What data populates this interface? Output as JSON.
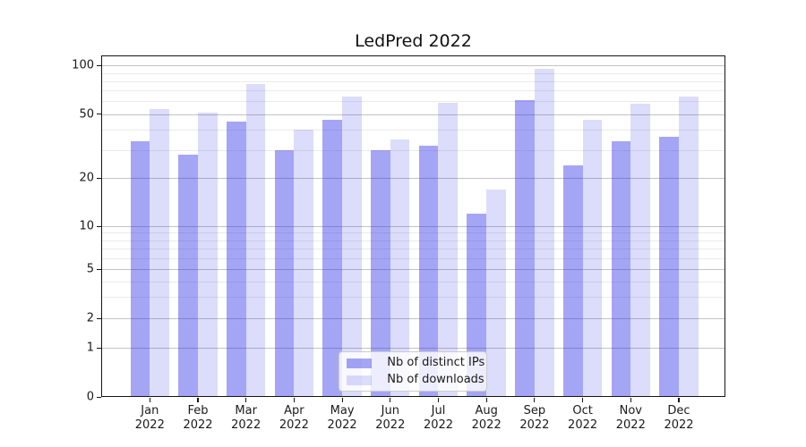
{
  "title": "LedPred 2022",
  "chart_data": {
    "type": "bar",
    "title": "LedPred 2022",
    "categories": [
      "Jan 2022",
      "Feb 2022",
      "Mar 2022",
      "Apr 2022",
      "May 2022",
      "Jun 2022",
      "Jul 2022",
      "Aug 2022",
      "Sep 2022",
      "Oct 2022",
      "Nov 2022",
      "Dec 2022"
    ],
    "series": [
      {
        "name": "Nb of distinct IPs",
        "color": "#2828e6",
        "alpha": 0.42,
        "blended_hex": "#a5a5f5",
        "values": [
          34,
          28,
          45,
          30,
          46,
          30,
          32,
          12,
          61,
          24,
          34,
          36
        ]
      },
      {
        "name": "Nb of downloads",
        "color": "#2828e6",
        "alpha": 0.16,
        "blended_hex": "#dedefb",
        "values": [
          54,
          51,
          77,
          40,
          64,
          35,
          59,
          17,
          95,
          46,
          58,
          64
        ]
      }
    ],
    "xlabel": "",
    "ylabel": "",
    "yscale": "symlog",
    "ylim": [
      0,
      116
    ],
    "y_ticks": [
      100,
      50,
      20,
      10,
      5,
      2,
      1,
      0
    ],
    "y_tick_labels": [
      "100",
      "50",
      "20",
      "10",
      "5",
      "2",
      "1",
      "0"
    ],
    "y_minor_gridlines": [
      3,
      4,
      6,
      7,
      8,
      9,
      30,
      40,
      60,
      70,
      80,
      90
    ],
    "grid": "both",
    "legend_position": "lower center"
  },
  "style": {
    "background": "#ffffff",
    "axis_color": "#151515",
    "text_color": "#1a1a1a",
    "grid_major": "#c3c3c3",
    "grid_minor": "#eaeaea",
    "legend_bg": "rgba(255,255,255,0.8)",
    "legend_border": "#cccccc"
  }
}
